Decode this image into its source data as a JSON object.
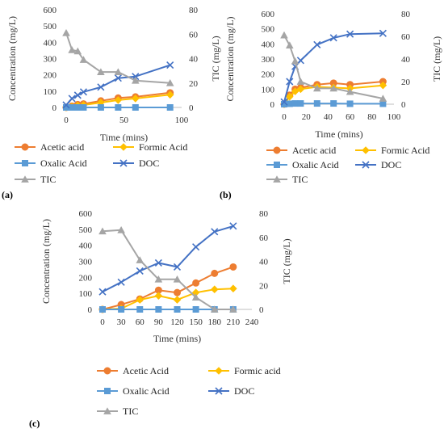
{
  "chart_data": [
    {
      "type": "line",
      "panel_label": "(a)",
      "xlabel": "Time (mins)",
      "ylabel_left": "Concentration (mg/L)",
      "ylabel_right": "TIC (mg/L)",
      "xlim": [
        0,
        100
      ],
      "xticks": [
        0,
        50,
        100
      ],
      "ylim_left": [
        0,
        600
      ],
      "yticks_left": [
        0,
        100,
        200,
        300,
        400,
        500,
        600
      ],
      "ylim_right": [
        0,
        80
      ],
      "yticks_right": [
        0,
        20,
        40,
        60,
        80
      ],
      "series": [
        {
          "name": "Acetic acid",
          "axis": "left",
          "color": "#ED7D31",
          "marker": "circle",
          "x": [
            0,
            5,
            10,
            15,
            30,
            45,
            60,
            90
          ],
          "y": [
            0,
            8,
            18,
            22,
            40,
            58,
            65,
            90
          ]
        },
        {
          "name": "Formic Acid",
          "axis": "left",
          "color": "#FFC000",
          "marker": "diamond",
          "x": [
            0,
            5,
            10,
            15,
            30,
            45,
            60,
            90
          ],
          "y": [
            0,
            5,
            12,
            15,
            30,
            45,
            55,
            78
          ]
        },
        {
          "name": "Oxalic Acid",
          "axis": "left",
          "color": "#5B9BD5",
          "marker": "square",
          "x": [
            0,
            5,
            10,
            15,
            30,
            45,
            60,
            90
          ],
          "y": [
            0,
            0,
            0,
            0,
            0,
            0,
            0,
            0
          ]
        },
        {
          "name": "DOC",
          "axis": "left",
          "color": "#4472C4",
          "marker": "x",
          "x": [
            0,
            5,
            10,
            15,
            30,
            45,
            60,
            90
          ],
          "y": [
            15,
            55,
            75,
            95,
            125,
            180,
            190,
            260
          ]
        },
        {
          "name": "TIC",
          "axis": "right",
          "color": "#A5A5A5",
          "marker": "triangle",
          "x": [
            0,
            5,
            10,
            15,
            30,
            45,
            60,
            90
          ],
          "y": [
            61,
            47,
            46,
            39,
            29,
            29,
            22,
            20
          ]
        }
      ]
    },
    {
      "type": "line",
      "panel_label": "(b)",
      "xlabel": "Time (mins)",
      "ylabel_left": "Concentration (mg/L)",
      "ylabel_right": "TIC (mg/L)",
      "xlim": [
        0,
        100
      ],
      "xticks": [
        0,
        20,
        40,
        60,
        80,
        100
      ],
      "ylim_left": [
        0,
        600
      ],
      "yticks_left": [
        0,
        100,
        200,
        300,
        400,
        500,
        600
      ],
      "ylim_right": [
        0,
        80
      ],
      "yticks_right": [
        0,
        20,
        40,
        60,
        80
      ],
      "series": [
        {
          "name": "Acetic acid",
          "axis": "left",
          "color": "#ED7D31",
          "marker": "circle",
          "x": [
            0,
            5,
            10,
            15,
            30,
            45,
            60,
            90
          ],
          "y": [
            0,
            60,
            100,
            110,
            130,
            140,
            130,
            150
          ]
        },
        {
          "name": "Formic Acid",
          "axis": "left",
          "color": "#FFC000",
          "marker": "diamond",
          "x": [
            0,
            5,
            10,
            15,
            30,
            45,
            60,
            90
          ],
          "y": [
            0,
            50,
            85,
            100,
            115,
            110,
            105,
            125
          ]
        },
        {
          "name": "Oxalic Acid",
          "axis": "left",
          "color": "#5B9BD5",
          "marker": "square",
          "x": [
            0,
            5,
            10,
            15,
            30,
            45,
            60,
            90
          ],
          "y": [
            0,
            3,
            5,
            5,
            5,
            5,
            3,
            3
          ]
        },
        {
          "name": "DOC",
          "axis": "left",
          "color": "#4472C4",
          "marker": "x",
          "x": [
            0,
            5,
            10,
            15,
            30,
            45,
            60,
            90
          ],
          "y": [
            15,
            150,
            250,
            290,
            395,
            440,
            465,
            470
          ]
        },
        {
          "name": "TIC",
          "axis": "right",
          "color": "#A5A5A5",
          "marker": "triangle",
          "x": [
            0,
            5,
            10,
            15,
            30,
            45,
            60,
            90
          ],
          "y": [
            61,
            52,
            38,
            20,
            14,
            14,
            11,
            5
          ]
        }
      ]
    },
    {
      "type": "line",
      "panel_label": "(c)",
      "xlabel": "Time (mins)",
      "ylabel_left": "Concentration (mg/L)",
      "ylabel_right": "TIC (mg/L)",
      "xlim": [
        0,
        240
      ],
      "xticks": [
        0,
        30,
        60,
        90,
        120,
        150,
        180,
        210,
        240
      ],
      "ylim_left": [
        0,
        600
      ],
      "yticks_left": [
        0,
        100,
        200,
        300,
        400,
        500,
        600
      ],
      "ylim_right": [
        0,
        80
      ],
      "yticks_right": [
        0,
        20,
        40,
        60,
        80
      ],
      "series": [
        {
          "name": "Acetic Acid",
          "axis": "left",
          "color": "#ED7D31",
          "marker": "circle",
          "x": [
            0,
            30,
            60,
            90,
            120,
            150,
            180,
            210
          ],
          "y": [
            0,
            30,
            65,
            120,
            105,
            165,
            225,
            265
          ]
        },
        {
          "name": "Formic acid",
          "axis": "left",
          "color": "#FFC000",
          "marker": "diamond",
          "x": [
            0,
            30,
            60,
            90,
            120,
            150,
            180,
            210
          ],
          "y": [
            0,
            5,
            60,
            85,
            60,
            105,
            125,
            130
          ]
        },
        {
          "name": "Oxalic Acid",
          "axis": "left",
          "color": "#5B9BD5",
          "marker": "square",
          "x": [
            0,
            30,
            60,
            90,
            120,
            150,
            180,
            210
          ],
          "y": [
            0,
            0,
            0,
            0,
            0,
            0,
            0,
            0
          ]
        },
        {
          "name": "DOC",
          "axis": "left",
          "color": "#4472C4",
          "marker": "x",
          "x": [
            0,
            30,
            60,
            90,
            120,
            150,
            180,
            210
          ],
          "y": [
            110,
            170,
            240,
            290,
            265,
            390,
            485,
            520
          ]
        },
        {
          "name": "TIC",
          "axis": "right",
          "color": "#A5A5A5",
          "marker": "triangle",
          "x": [
            0,
            30,
            60,
            90,
            120,
            150,
            180,
            210
          ],
          "y": [
            65,
            66,
            41,
            25,
            25,
            10,
            0,
            0
          ]
        }
      ]
    }
  ]
}
